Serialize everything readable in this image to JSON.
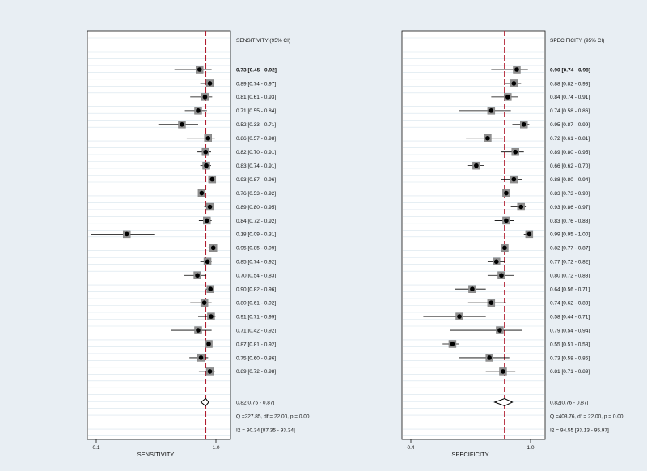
{
  "chart_data": [
    {
      "type": "forest",
      "title": "",
      "xlabel": "SENSITIVITY",
      "ylabel": "",
      "column_header": "SENSITIVITY (95% CI)",
      "scale": "log",
      "xlim": [
        0.1,
        1.0
      ],
      "xticks": [
        "0.1",
        "1.0"
      ],
      "reference_line": 0.82,
      "grid": true,
      "studies": [
        {
          "est": 0.73,
          "lo": 0.45,
          "hi": 0.92,
          "label": "0.73 [0.45 - 0.92]"
        },
        {
          "est": 0.89,
          "lo": 0.74,
          "hi": 0.97,
          "label": "0.89 [0.74 - 0.97]"
        },
        {
          "est": 0.81,
          "lo": 0.61,
          "hi": 0.93,
          "label": "0.81 [0.61 - 0.93]"
        },
        {
          "est": 0.71,
          "lo": 0.55,
          "hi": 0.84,
          "label": "0.71 [0.55 - 0.84]"
        },
        {
          "est": 0.52,
          "lo": 0.33,
          "hi": 0.71,
          "label": "0.52 [0.33 - 0.71]"
        },
        {
          "est": 0.86,
          "lo": 0.57,
          "hi": 0.98,
          "label": "0.86 [0.57 - 0.98]"
        },
        {
          "est": 0.82,
          "lo": 0.7,
          "hi": 0.91,
          "label": "0.82 [0.70 - 0.91]"
        },
        {
          "est": 0.83,
          "lo": 0.74,
          "hi": 0.91,
          "label": "0.83 [0.74 - 0.91]"
        },
        {
          "est": 0.93,
          "lo": 0.87,
          "hi": 0.96,
          "label": "0.93 [0.87 - 0.96]"
        },
        {
          "est": 0.76,
          "lo": 0.53,
          "hi": 0.92,
          "label": "0.76 [0.53 - 0.92]"
        },
        {
          "est": 0.89,
          "lo": 0.8,
          "hi": 0.95,
          "label": "0.89 [0.80 - 0.95]"
        },
        {
          "est": 0.84,
          "lo": 0.72,
          "hi": 0.92,
          "label": "0.84 [0.72 - 0.92]"
        },
        {
          "est": 0.18,
          "lo": 0.09,
          "hi": 0.31,
          "label": "0.18 [0.09 - 0.31]"
        },
        {
          "est": 0.95,
          "lo": 0.85,
          "hi": 0.99,
          "label": "0.95 [0.85 - 0.99]"
        },
        {
          "est": 0.85,
          "lo": 0.74,
          "hi": 0.92,
          "label": "0.85 [0.74 - 0.92]"
        },
        {
          "est": 0.7,
          "lo": 0.54,
          "hi": 0.83,
          "label": "0.70 [0.54 - 0.83]"
        },
        {
          "est": 0.9,
          "lo": 0.82,
          "hi": 0.96,
          "label": "0.90 [0.82 - 0.96]"
        },
        {
          "est": 0.8,
          "lo": 0.61,
          "hi": 0.92,
          "label": "0.80 [0.61 - 0.92]"
        },
        {
          "est": 0.91,
          "lo": 0.71,
          "hi": 0.99,
          "label": "0.91 [0.71 - 0.99]"
        },
        {
          "est": 0.71,
          "lo": 0.42,
          "hi": 0.92,
          "label": "0.71 [0.42 - 0.92]"
        },
        {
          "est": 0.87,
          "lo": 0.81,
          "hi": 0.92,
          "label": "0.87 [0.81 - 0.92]"
        },
        {
          "est": 0.75,
          "lo": 0.6,
          "hi": 0.86,
          "label": "0.75 [0.60 - 0.86]"
        },
        {
          "est": 0.89,
          "lo": 0.72,
          "hi": 0.98,
          "label": "0.89 [0.72 - 0.98]"
        }
      ],
      "summary": {
        "est": 0.82,
        "lo": 0.75,
        "hi": 0.87,
        "label": "0.82[0.75 - 0.87]"
      },
      "stats": [
        "Q =227.85, df = 22.00, p =  0.00",
        "I2 = 90.34 [87.35 - 93.34]"
      ]
    },
    {
      "type": "forest",
      "title": "",
      "xlabel": "SPECIFICITY",
      "ylabel": "",
      "column_header": "SPECIFICITY (95% CI)",
      "scale": "log",
      "xlim": [
        0.4,
        1.0
      ],
      "xticks": [
        "0.4",
        "1.0"
      ],
      "reference_line": 0.82,
      "grid": true,
      "studies": [
        {
          "est": 0.9,
          "lo": 0.74,
          "hi": 0.98,
          "label": "0.90 [0.74 - 0.98]"
        },
        {
          "est": 0.88,
          "lo": 0.82,
          "hi": 0.93,
          "label": "0.88 [0.82 - 0.93]"
        },
        {
          "est": 0.84,
          "lo": 0.74,
          "hi": 0.91,
          "label": "0.84 [0.74 - 0.91]"
        },
        {
          "est": 0.74,
          "lo": 0.58,
          "hi": 0.86,
          "label": "0.74 [0.58 - 0.86]"
        },
        {
          "est": 0.95,
          "lo": 0.87,
          "hi": 0.99,
          "label": "0.95 [0.87 - 0.99]"
        },
        {
          "est": 0.72,
          "lo": 0.61,
          "hi": 0.81,
          "label": "0.72 [0.61 - 0.81]"
        },
        {
          "est": 0.89,
          "lo": 0.8,
          "hi": 0.95,
          "label": "0.89 [0.80 - 0.95]"
        },
        {
          "est": 0.66,
          "lo": 0.62,
          "hi": 0.7,
          "label": "0.66 [0.62 - 0.70]"
        },
        {
          "est": 0.88,
          "lo": 0.8,
          "hi": 0.94,
          "label": "0.88 [0.80 - 0.94]"
        },
        {
          "est": 0.83,
          "lo": 0.73,
          "hi": 0.9,
          "label": "0.83 [0.73 - 0.90]"
        },
        {
          "est": 0.93,
          "lo": 0.86,
          "hi": 0.97,
          "label": "0.93 [0.86 - 0.97]"
        },
        {
          "est": 0.83,
          "lo": 0.76,
          "hi": 0.88,
          "label": "0.83 [0.76 - 0.88]"
        },
        {
          "est": 0.99,
          "lo": 0.95,
          "hi": 1.0,
          "label": "0.99 [0.95 - 1.00]"
        },
        {
          "est": 0.82,
          "lo": 0.77,
          "hi": 0.87,
          "label": "0.82 [0.77 - 0.87]"
        },
        {
          "est": 0.77,
          "lo": 0.72,
          "hi": 0.82,
          "label": "0.77 [0.72 - 0.82]"
        },
        {
          "est": 0.8,
          "lo": 0.72,
          "hi": 0.88,
          "label": "0.80 [0.72 - 0.88]"
        },
        {
          "est": 0.64,
          "lo": 0.56,
          "hi": 0.71,
          "label": "0.64 [0.56 - 0.71]"
        },
        {
          "est": 0.74,
          "lo": 0.62,
          "hi": 0.83,
          "label": "0.74 [0.62 - 0.83]"
        },
        {
          "est": 0.58,
          "lo": 0.44,
          "hi": 0.71,
          "label": "0.58 [0.44 - 0.71]"
        },
        {
          "est": 0.79,
          "lo": 0.54,
          "hi": 0.94,
          "label": "0.79 [0.54 - 0.94]"
        },
        {
          "est": 0.55,
          "lo": 0.51,
          "hi": 0.58,
          "label": "0.55 [0.51 - 0.58]"
        },
        {
          "est": 0.73,
          "lo": 0.58,
          "hi": 0.85,
          "label": "0.73 [0.58 - 0.85]"
        },
        {
          "est": 0.81,
          "lo": 0.71,
          "hi": 0.89,
          "label": "0.81 [0.71 - 0.89]"
        }
      ],
      "summary": {
        "est": 0.82,
        "lo": 0.76,
        "hi": 0.87,
        "label": "0.82[0.76 - 0.87]"
      },
      "stats": [
        "Q =403.76, df = 22.00, p =  0.00",
        "I2 = 94.55 [93.13 - 95.97]"
      ]
    }
  ],
  "colors": {
    "background": "#e8eef3",
    "plot_area": "#ffffff",
    "gridline": "#d6e3ec",
    "reference_line": "#b01c2e",
    "marker_box": "#909090",
    "marker_dot": "#000000",
    "ci_line": "#000000"
  }
}
